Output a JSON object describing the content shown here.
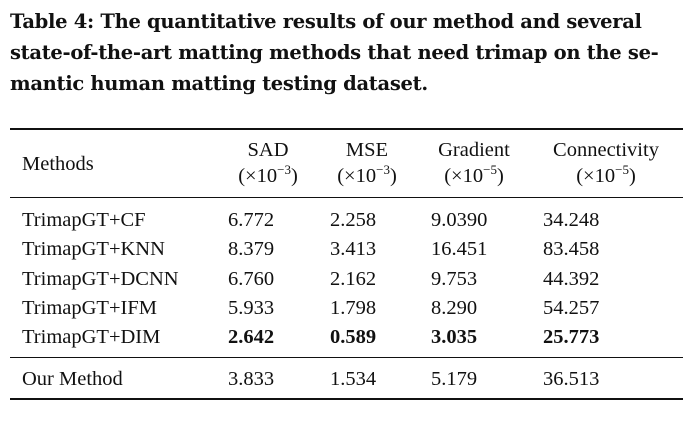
{
  "caption": "Table 4: The quantitative results of our method and several state-of-the-art matting methods that need trimap on the semantic human matting testing dataset.",
  "caption_lines": [
    "Table 4: The quantitative results of our method and several",
    "state-of-the-art matting methods that need trimap on the se-",
    "mantic human matting testing dataset."
  ],
  "table": {
    "columns": [
      {
        "name": "Methods"
      },
      {
        "name": "SAD",
        "unit_base": "(×10",
        "unit_exp": "−3",
        "unit_close": ")"
      },
      {
        "name": "MSE",
        "unit_base": "(×10",
        "unit_exp": "−3",
        "unit_close": ")"
      },
      {
        "name": "Gradient",
        "unit_base": "(×10",
        "unit_exp": "−5",
        "unit_close": ")"
      },
      {
        "name": "Connectivity",
        "unit_base": "(×10",
        "unit_exp": "−5",
        "unit_close": ")"
      }
    ],
    "rows": [
      {
        "method": "TrimapGT+CF",
        "values": [
          "6.772",
          "2.258",
          "9.0390",
          "34.248"
        ],
        "bold": false
      },
      {
        "method": "TrimapGT+KNN",
        "values": [
          "8.379",
          "3.413",
          "16.451",
          "83.458"
        ],
        "bold": false
      },
      {
        "method": "TrimapGT+DCNN",
        "values": [
          "6.760",
          "2.162",
          "9.753",
          "44.392"
        ],
        "bold": false
      },
      {
        "method": "TrimapGT+IFM",
        "values": [
          "5.933",
          "1.798",
          "8.290",
          "54.257"
        ],
        "bold": false
      },
      {
        "method": "TrimapGT+DIM",
        "values": [
          "2.642",
          "0.589",
          "3.035",
          "25.773"
        ],
        "bold": true
      }
    ],
    "ours": {
      "method": "Our Method",
      "values": [
        "3.833",
        "1.534",
        "5.179",
        "36.513"
      ]
    }
  }
}
